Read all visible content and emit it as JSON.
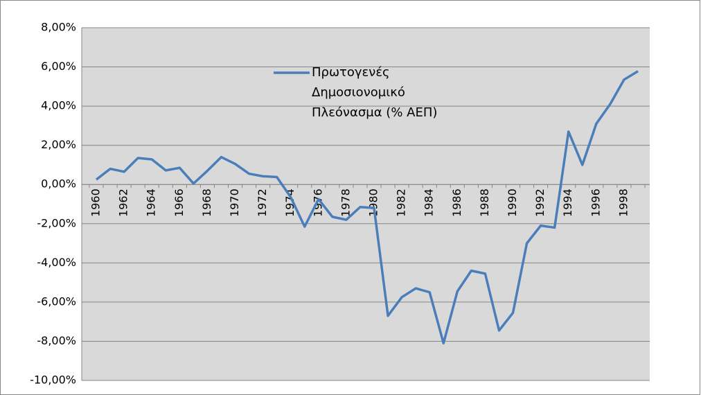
{
  "chart_data": {
    "type": "line",
    "categories": [
      "1960",
      null,
      "1962",
      null,
      "1964",
      null,
      "1966",
      null,
      "1968",
      null,
      "1970",
      null,
      "1972",
      null,
      "1974",
      null,
      "1976",
      null,
      "1978",
      null,
      "1980",
      null,
      "1982",
      null,
      "1984",
      null,
      "1986",
      null,
      "1988",
      null,
      "1990",
      null,
      "1992",
      null,
      "1994",
      null,
      "1996",
      null,
      "1998",
      null
    ],
    "series": [
      {
        "name": "Πρωτογενές Δημοσιονομικό Πλεόνασμα (% ΑΕΠ)",
        "color": "#4a7ebb",
        "values": [
          0.25,
          0.8,
          0.65,
          1.35,
          1.28,
          0.72,
          0.85,
          0.05,
          0.7,
          1.4,
          1.05,
          0.55,
          0.42,
          0.38,
          -0.65,
          -2.15,
          -0.75,
          -1.65,
          -1.8,
          -1.15,
          -1.2,
          -6.7,
          -5.75,
          -5.3,
          -5.5,
          -8.1,
          -5.45,
          -4.4,
          -4.55,
          -7.45,
          -6.55,
          -3.0,
          -2.1,
          -2.2,
          2.7,
          1.0,
          3.1,
          4.1,
          5.35,
          5.78
        ]
      }
    ],
    "ylim": [
      -10,
      8
    ],
    "yticks": [
      {
        "value": -10,
        "label": "-10,00%"
      },
      {
        "value": -8,
        "label": "-8,00%"
      },
      {
        "value": -6,
        "label": "-6,00%"
      },
      {
        "value": -4,
        "label": "-4,00%"
      },
      {
        "value": -2,
        "label": "-2,00%"
      },
      {
        "value": 0,
        "label": "0,00%"
      },
      {
        "value": 2,
        "label": "2,00%"
      },
      {
        "value": 4,
        "label": "4,00%"
      },
      {
        "value": 6,
        "label": "6,00%"
      },
      {
        "value": 8,
        "label": "8,00%"
      }
    ],
    "grid": true
  }
}
